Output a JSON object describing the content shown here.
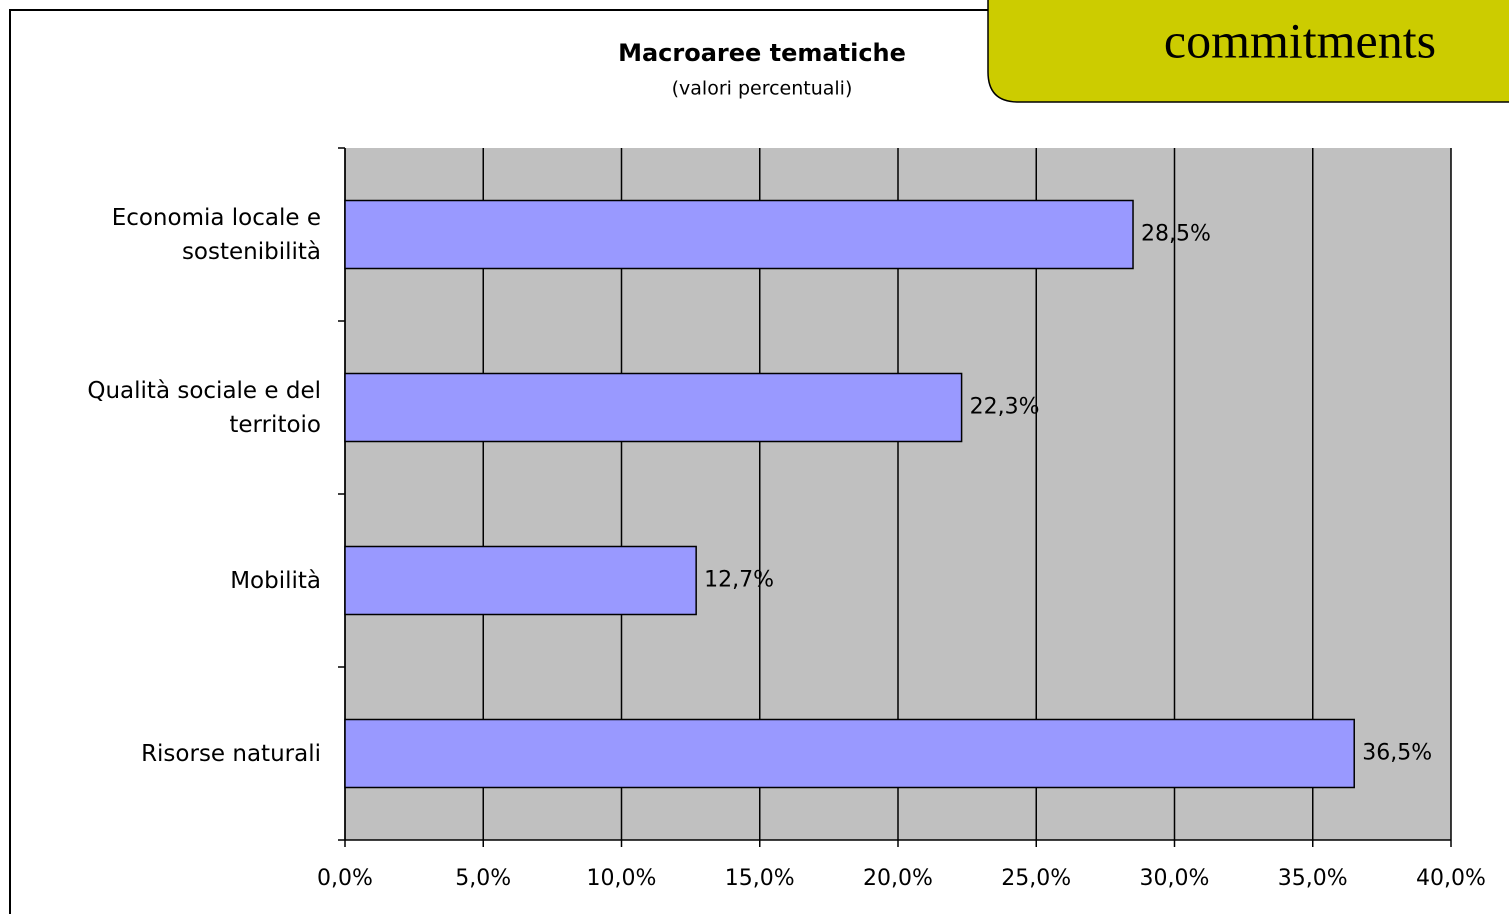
{
  "banner": {
    "text": "commitments"
  },
  "chart_data": {
    "type": "bar",
    "orientation": "horizontal",
    "title": "Macroaree tematiche",
    "subtitle": "(valori percentuali)",
    "categories": [
      "Economia locale e sostenibilità",
      "Qualità sociale e del territoio",
      "Mobilità",
      "Risorse naturali"
    ],
    "values": [
      28.5,
      22.3,
      12.7,
      36.5
    ],
    "value_labels": [
      "28,5%",
      "22,3%",
      "12,7%",
      "36,5%"
    ],
    "color": "#9999ff",
    "xlim": [
      0,
      40
    ],
    "xticks": [
      {
        "value": 0,
        "label": "0,0%"
      },
      {
        "value": 5,
        "label": "5,0%"
      },
      {
        "value": 10,
        "label": "10,0%"
      },
      {
        "value": 15,
        "label": "15,0%"
      },
      {
        "value": 20,
        "label": "20,0%"
      },
      {
        "value": 25,
        "label": "25,0%"
      },
      {
        "value": 30,
        "label": "30,0%"
      },
      {
        "value": 35,
        "label": "35,0%"
      },
      {
        "value": 40,
        "label": "40,0%"
      }
    ],
    "grid": true
  }
}
